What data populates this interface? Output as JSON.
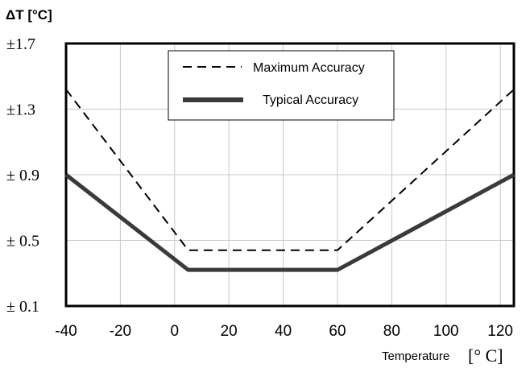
{
  "chart_data": {
    "type": "line",
    "ylabel": "ΔT [°C]",
    "xlabel": "Temperature",
    "xlabel_unit": "[° C]",
    "xlim": [
      -40,
      125
    ],
    "ylim": [
      0.1,
      1.7
    ],
    "x_ticks": [
      -40,
      -20,
      0,
      20,
      40,
      60,
      80,
      100,
      120
    ],
    "x_tick_labels": [
      "-40",
      "-20",
      "0",
      "20",
      "40",
      "60",
      "80",
      "100",
      "120"
    ],
    "y_ticks": [
      0.1,
      0.5,
      0.9,
      1.3,
      1.7
    ],
    "y_tick_labels": [
      "± 0.1",
      "± 0.5",
      "± 0.9",
      "±1.3",
      "±1.7"
    ],
    "grid": true,
    "legend_position": "top-center",
    "series": [
      {
        "name": "Maximum Accuracy",
        "style": "dashed",
        "color": "#000000",
        "x": [
          -40,
          5,
          60,
          125
        ],
        "y": [
          1.42,
          0.44,
          0.44,
          1.42
        ]
      },
      {
        "name": "Typical Accuracy",
        "style": "solid-thick",
        "color": "#3a3a3a",
        "x": [
          -40,
          5,
          60,
          125
        ],
        "y": [
          0.9,
          0.32,
          0.32,
          0.9
        ]
      }
    ]
  }
}
